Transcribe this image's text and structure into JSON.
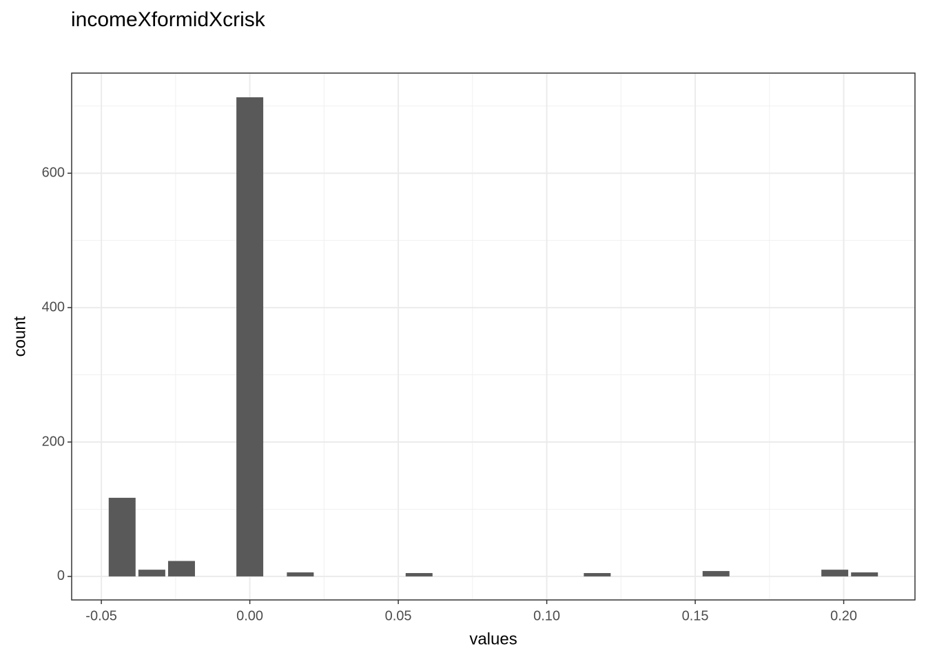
{
  "chart_data": {
    "type": "bar",
    "title": "incomeXformidXcrisk",
    "x_label": "values",
    "y_label": "count",
    "x": [
      -0.043,
      -0.033,
      -0.023,
      0.0,
      0.017,
      0.057,
      0.117,
      0.157,
      0.197,
      0.207
    ],
    "values": [
      117,
      10,
      23,
      713,
      6,
      5,
      5,
      8,
      10,
      6
    ],
    "color": "#595959",
    "xlim": [
      -0.06,
      0.224
    ],
    "xticks": [
      {
        "value": -0.05,
        "label": "-0.05"
      },
      {
        "value": 0,
        "label": "0.00"
      },
      {
        "value": 0.05,
        "label": "0.05"
      },
      {
        "value": 0.1,
        "label": "0.10"
      },
      {
        "value": 0.15,
        "label": "0.15"
      },
      {
        "value": 0.2,
        "label": "0.20"
      }
    ],
    "ylim": [
      -35,
      749
    ],
    "yticks": [
      0,
      200,
      400,
      600
    ],
    "grid": true
  }
}
